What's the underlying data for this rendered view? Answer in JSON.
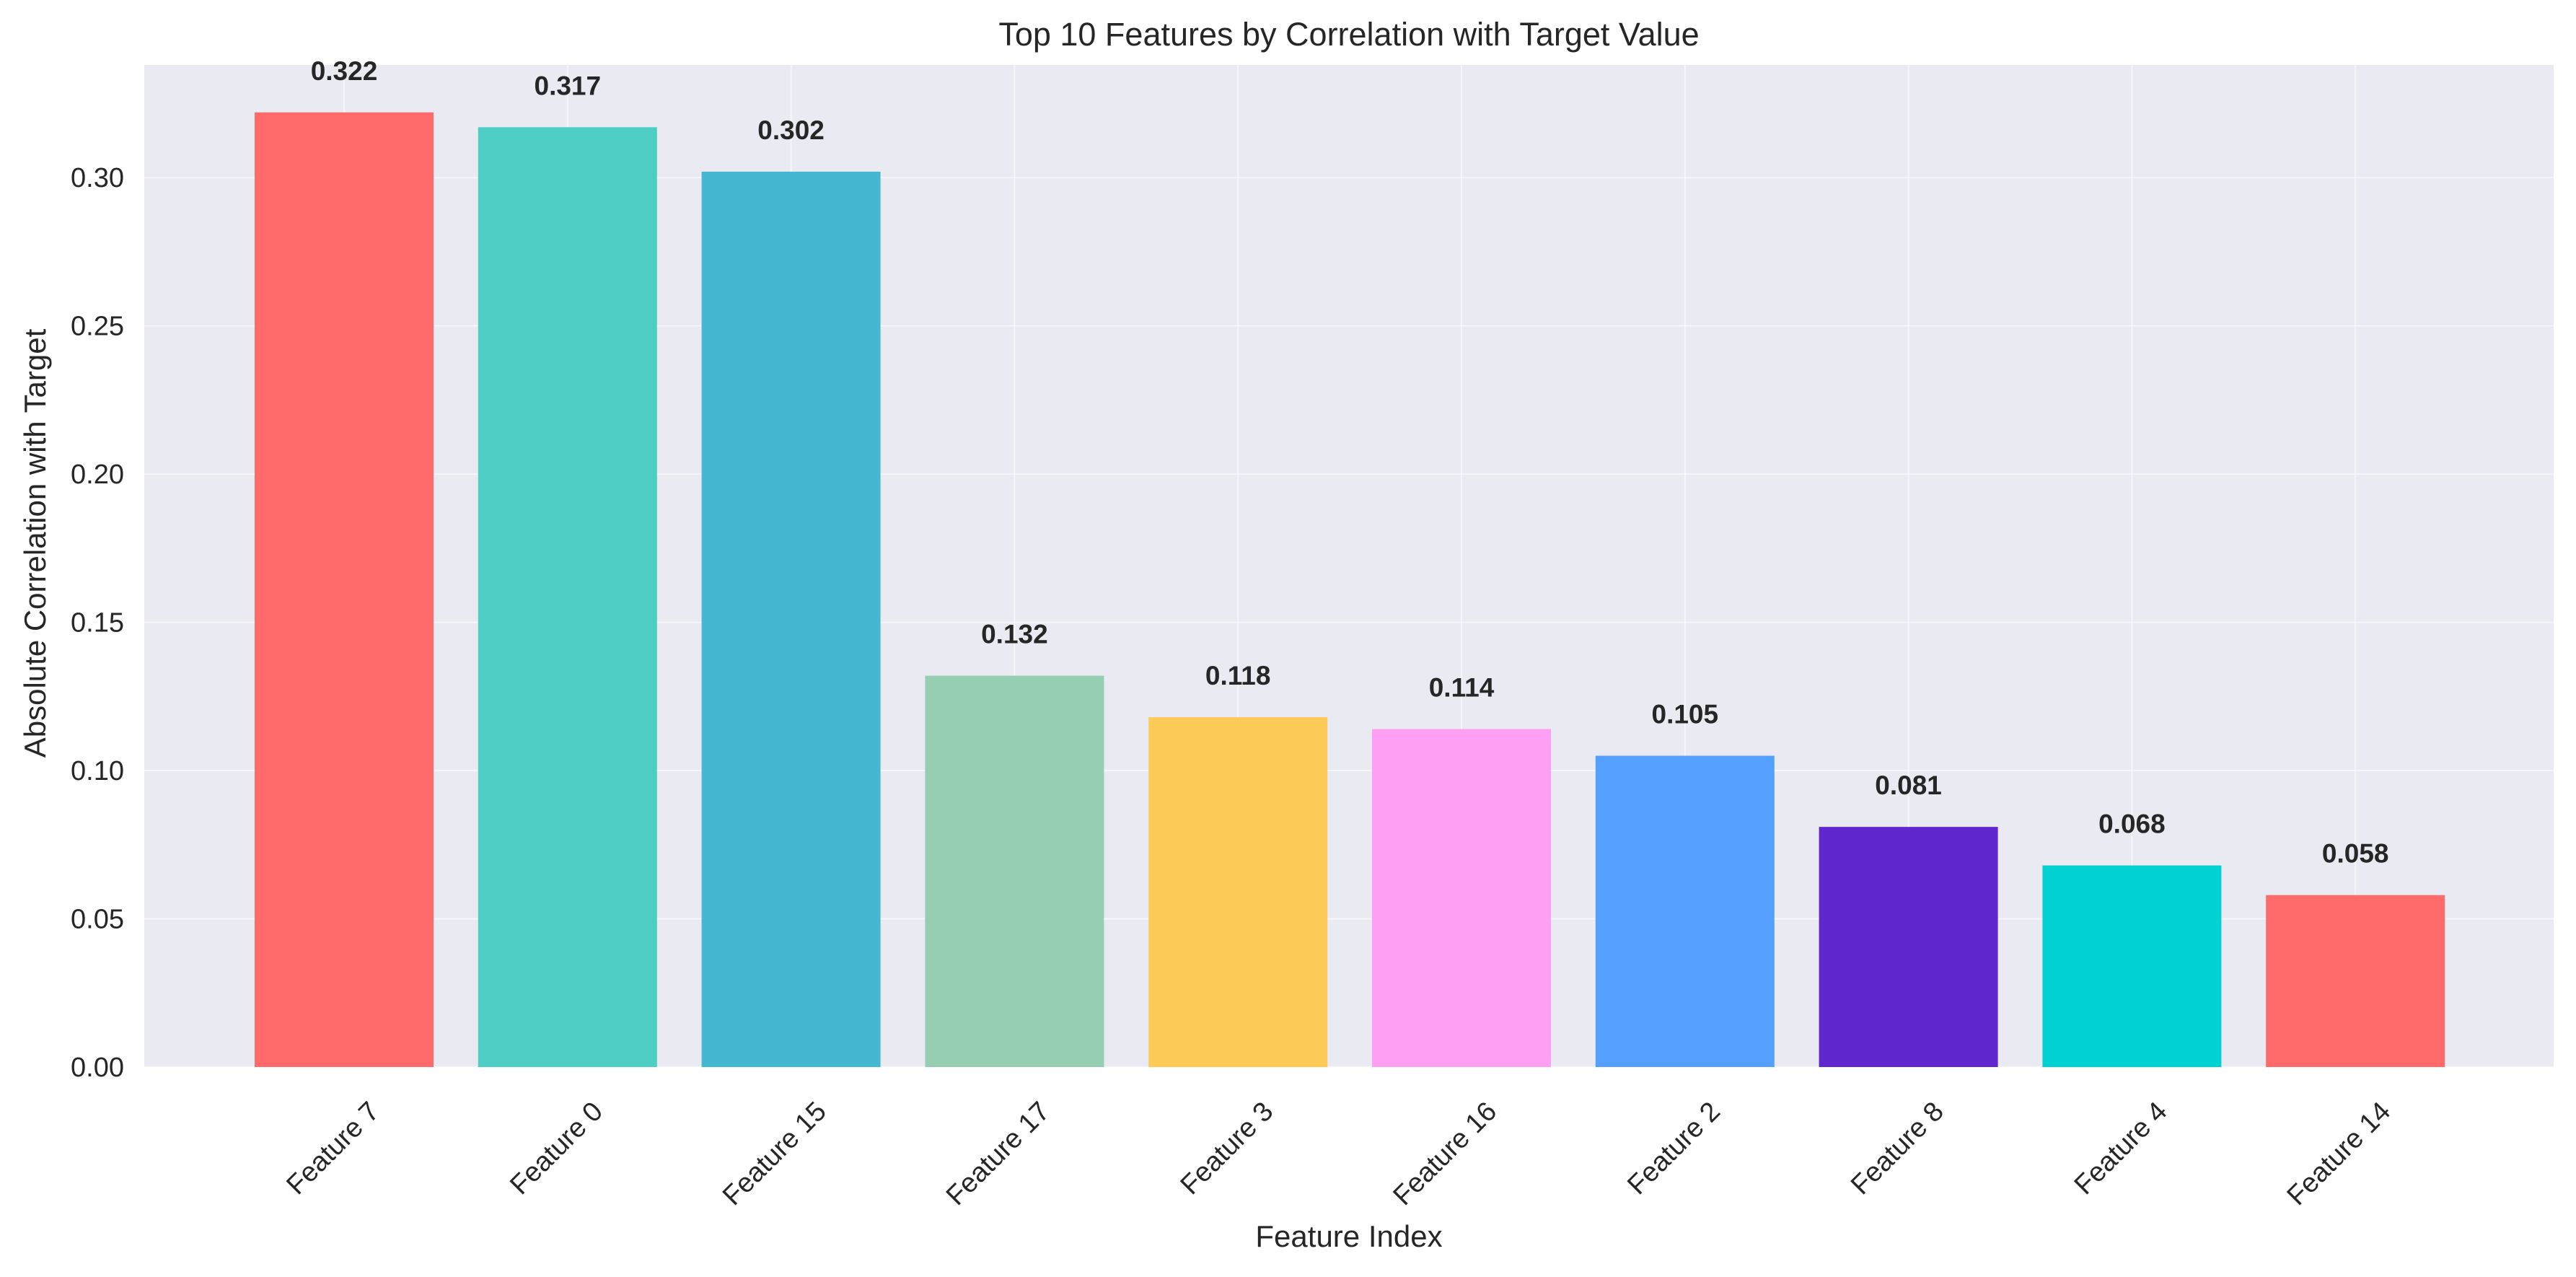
{
  "chart_data": {
    "type": "bar",
    "title": "Top 10 Features by Correlation with Target Value",
    "xlabel": "Feature Index",
    "ylabel": "Absolute Correlation with Target",
    "categories": [
      "Feature 7",
      "Feature 0",
      "Feature 15",
      "Feature 17",
      "Feature 3",
      "Feature 16",
      "Feature 2",
      "Feature 8",
      "Feature 4",
      "Feature 14"
    ],
    "values": [
      0.322,
      0.317,
      0.302,
      0.132,
      0.118,
      0.114,
      0.105,
      0.081,
      0.068,
      0.058
    ],
    "value_labels": [
      "0.322",
      "0.317",
      "0.302",
      "0.132",
      "0.118",
      "0.114",
      "0.105",
      "0.081",
      "0.068",
      "0.058"
    ],
    "colors": [
      "#FF6B6B",
      "#4ECDC4",
      "#45B7D1",
      "#96CEB4",
      "#FECA57",
      "#FF9FF3",
      "#54A0FF",
      "#5F27CD",
      "#00D2D3",
      "#FF6B6B"
    ],
    "ylim": [
      0,
      0.338
    ],
    "yticks": [
      0.0,
      0.05,
      0.1,
      0.15,
      0.2,
      0.25,
      0.3
    ],
    "ytick_labels": [
      "0.00",
      "0.05",
      "0.10",
      "0.15",
      "0.20",
      "0.25",
      "0.30"
    ],
    "xtick_rotation": 45,
    "grid": true,
    "plot_background": "#EAEAF2",
    "grid_color": "#FFFFFF"
  }
}
